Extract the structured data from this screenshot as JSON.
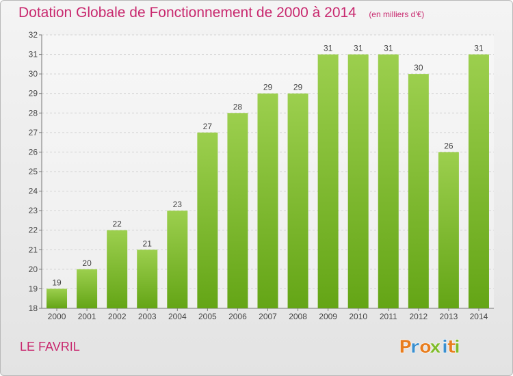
{
  "header": {
    "title": "Dotation Globale de Fonctionnement de 2000 à 2014",
    "unit": "(en milliers d'€)"
  },
  "footer": {
    "commune": "LE FAVRIL",
    "brand": "Proxiti"
  },
  "colors": {
    "title": "#c8286e",
    "bar_light": "#9ccf4e",
    "bar_dark": "#64a516",
    "background": "#ececec",
    "brand_letters": [
      "#e87d1e",
      "#3a8fcf",
      "#e87d1e",
      "#7fbb2a",
      "#3a8fcf",
      "#e87d1e",
      "#7fbb2a"
    ]
  },
  "chart_data": {
    "type": "bar",
    "title": "Dotation Globale de Fonctionnement de 2000 à 2014",
    "subtitle": "(en milliers d'€)",
    "categories": [
      "2000",
      "2001",
      "2002",
      "2003",
      "2004",
      "2005",
      "2006",
      "2007",
      "2008",
      "2009",
      "2010",
      "2011",
      "2012",
      "2013",
      "2014"
    ],
    "values": [
      19,
      20,
      22,
      21,
      23,
      27,
      28,
      29,
      29,
      31,
      31,
      31,
      30,
      26,
      31
    ],
    "ylim": [
      18,
      32
    ],
    "yticks": [
      18,
      19,
      20,
      21,
      22,
      23,
      24,
      25,
      26,
      27,
      28,
      29,
      30,
      31,
      32
    ],
    "grid": true,
    "data_labels": true
  }
}
